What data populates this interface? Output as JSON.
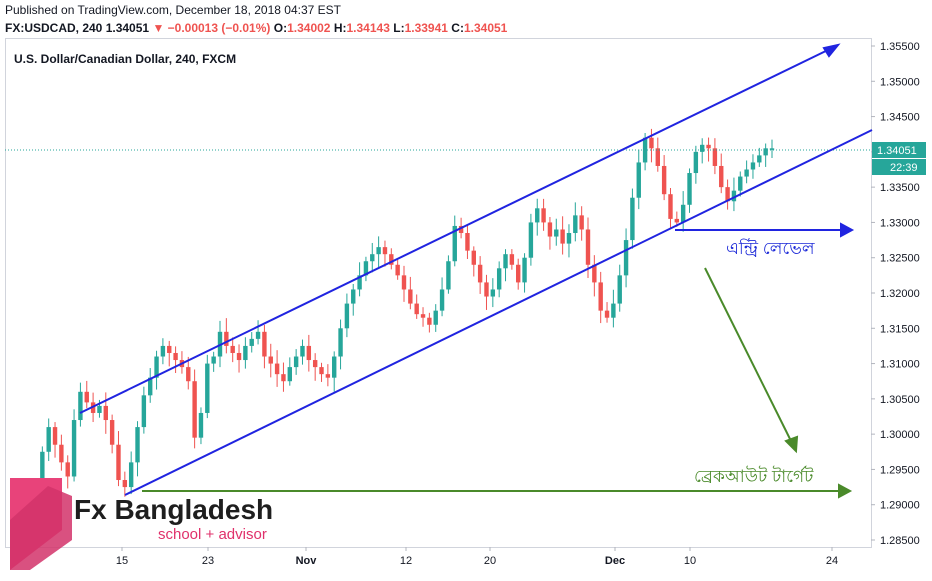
{
  "header": {
    "published": "Published on TradingView.com, December 18, 2018 04:37 EST",
    "symbol": "FX:USDCAD, 240",
    "last": "1.34051",
    "change": "▼ −0.00013 (−0.01%)",
    "o_label": "O:",
    "o_value": "1.34002",
    "h_label": "H:",
    "h_value": "1.34143",
    "l_label": "L:",
    "l_value": "1.33941",
    "c_label": "C:",
    "c_value": "1.34051"
  },
  "instrument": "U.S. Dollar/Canadian Dollar, 240, FXCM",
  "logo": {
    "name": "Fx Bangladesh",
    "tagline": "school + advisor",
    "color": "#e8437a"
  },
  "annotations": {
    "entry": "এন্ট্রি লেভেল",
    "target": "ব্রেকআউট টার্গেট",
    "entry_color": "#1e2bd8",
    "target_color": "#4a8a2a",
    "channel_color": "#2024e0"
  },
  "price_label": {
    "value": "1.34051",
    "countdown": "22:39",
    "color": "#26a69a"
  },
  "colors": {
    "up": "#26a69a",
    "down": "#ef5350"
  },
  "chart_data": {
    "type": "candlestick",
    "y_ticks": [
      "1.35500",
      "1.35000",
      "1.34500",
      "1.34000",
      "1.33500",
      "1.33000",
      "1.32500",
      "1.32000",
      "1.31500",
      "1.31000",
      "1.30500",
      "1.30000",
      "1.29500",
      "1.29000",
      "1.28500"
    ],
    "x_ticks": [
      "15",
      "23",
      "Nov",
      "12",
      "20",
      "Dec",
      "10",
      "24"
    ],
    "ylim": [
      1.2845,
      1.3558
    ],
    "last_price": 1.34051,
    "series": [
      {
        "name": "Close",
        "values": [
          1.292,
          1.2975,
          1.301,
          1.2985,
          1.296,
          1.294,
          1.302,
          1.306,
          1.3045,
          1.303,
          1.304,
          1.302,
          1.2985,
          1.2935,
          1.2925,
          1.296,
          1.301,
          1.3055,
          1.308,
          1.311,
          1.3125,
          1.3115,
          1.3105,
          1.3095,
          1.3075,
          1.2995,
          1.303,
          1.31,
          1.311,
          1.3145,
          1.3125,
          1.3115,
          1.3105,
          1.3125,
          1.3135,
          1.3145,
          1.311,
          1.31,
          1.3085,
          1.3075,
          1.3095,
          1.311,
          1.3125,
          1.3105,
          1.3095,
          1.3085,
          1.308,
          1.311,
          1.315,
          1.3185,
          1.3205,
          1.3225,
          1.3245,
          1.3255,
          1.3265,
          1.3255,
          1.324,
          1.3225,
          1.3205,
          1.3185,
          1.317,
          1.3165,
          1.3155,
          1.3175,
          1.3205,
          1.3245,
          1.3295,
          1.3285,
          1.326,
          1.324,
          1.3215,
          1.3195,
          1.3205,
          1.3235,
          1.3255,
          1.324,
          1.3215,
          1.325,
          1.33,
          1.332,
          1.33,
          1.328,
          1.329,
          1.327,
          1.3285,
          1.331,
          1.329,
          1.324,
          1.3215,
          1.3175,
          1.3165,
          1.3185,
          1.3225,
          1.3275,
          1.3335,
          1.3385,
          1.342,
          1.3405,
          1.338,
          1.334,
          1.3305,
          1.33,
          1.3325,
          1.337,
          1.34,
          1.341,
          1.3405,
          1.338,
          1.335,
          1.333,
          1.3345,
          1.3365,
          1.3375,
          1.3385,
          1.3395,
          1.3405,
          1.3405
        ]
      }
    ]
  }
}
